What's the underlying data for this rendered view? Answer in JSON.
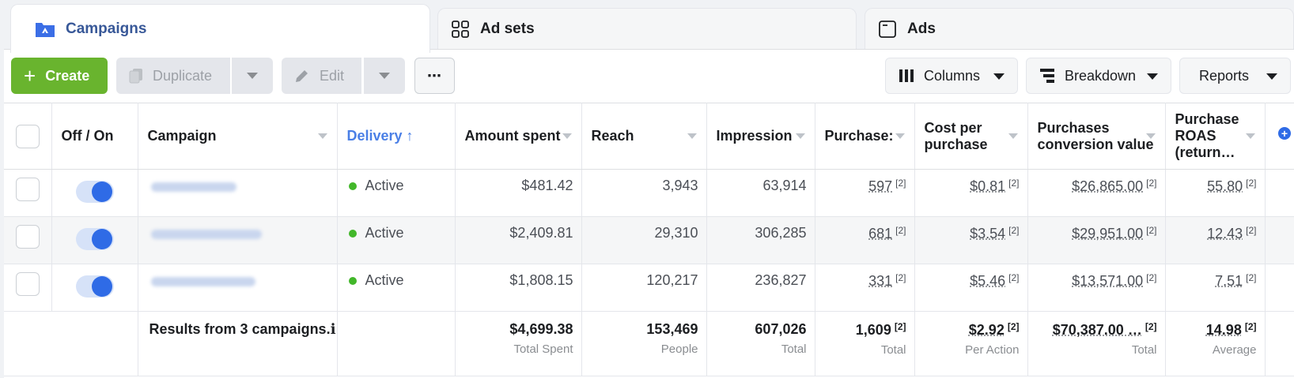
{
  "tabs": {
    "campaigns": "Campaigns",
    "ad_sets": "Ad sets",
    "ads": "Ads"
  },
  "toolbar": {
    "create": "Create",
    "duplicate": "Duplicate",
    "edit": "Edit",
    "more": "⋯",
    "columns": "Columns",
    "breakdown": "Breakdown",
    "reports": "Reports"
  },
  "columns": {
    "off_on": "Off / On",
    "campaign": "Campaign",
    "delivery": "Delivery ↑",
    "amount_spent": "Amount spent",
    "reach": "Reach",
    "impressions": "Impression",
    "purchases": "Purchase:",
    "cost_per_purchase": "Cost per purchase",
    "purchases_conversion_value": "Purchases conversion value",
    "purchase_roas": "Purchase ROAS (return…"
  },
  "rows": [
    {
      "status": "Active",
      "amount_spent": "$481.42",
      "reach": "3,943",
      "impressions": "63,914",
      "purchases": "597",
      "cost_per_purchase": "$0.81",
      "conversion_value": "$26,865.00",
      "roas": "55.80",
      "note": "[2]"
    },
    {
      "status": "Active",
      "amount_spent": "$2,409.81",
      "reach": "29,310",
      "impressions": "306,285",
      "purchases": "681",
      "cost_per_purchase": "$3.54",
      "conversion_value": "$29,951.00",
      "roas": "12.43",
      "note": "[2]"
    },
    {
      "status": "Active",
      "amount_spent": "$1,808.15",
      "reach": "120,217",
      "impressions": "236,827",
      "purchases": "331",
      "cost_per_purchase": "$5.46",
      "conversion_value": "$13,571.00",
      "roas": "7.51",
      "note": "[2]"
    }
  ],
  "totals": {
    "results": "Results from 3 campaigns.ℹ",
    "amount_spent": "$4,699.38",
    "amount_spent_sub": "Total Spent",
    "reach": "153,469",
    "reach_sub": "People",
    "impressions": "607,026",
    "impressions_sub": "Total",
    "purchases": "1,609",
    "purchases_sub": "Total",
    "cost_per_purchase": "$2.92",
    "cost_per_purchase_sub": "Per Action",
    "conversion_value": "$70,387.00 …",
    "conversion_value_sub": "Total",
    "roas": "14.98",
    "roas_sub": "Average",
    "note": "[2]"
  },
  "colors": {
    "accent": "#2f6be6",
    "create_green": "#69b42e",
    "active_dot": "#42b72a"
  }
}
